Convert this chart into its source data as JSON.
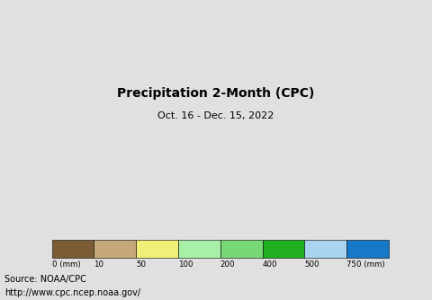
{
  "title": "Precipitation 2-Month (CPC)",
  "subtitle": "Oct. 16 - Dec. 15, 2022",
  "source_line1": "Source: NOAA/CPC",
  "source_line2": "http://www.cpc.ncep.noaa.gov/",
  "colorbar_colors": [
    "#7B5C35",
    "#C4A878",
    "#F0F078",
    "#A8F0A8",
    "#78D878",
    "#20B020",
    "#A8D4F0",
    "#1878C8"
  ],
  "colorbar_labels": [
    "0 (mm)",
    "10",
    "50",
    "100",
    "200",
    "400",
    "500",
    "750 (mm)"
  ],
  "ocean_color": "#AAFFFF",
  "background_color": "#E0E0E0",
  "title_fontsize": 13,
  "subtitle_fontsize": 8,
  "source_fontsize": 7,
  "country_colors": {
    "Canada": "#A8F0A8",
    "United States of America": "#78D878",
    "Mexico": "#A8F0A8",
    "Guatemala": "#A8F0A8",
    "Belize": "#A8F0A8",
    "Honduras": "#A8F0A8",
    "El Salvador": "#A8F0A8",
    "Nicaragua": "#A8F0A8",
    "Costa Rica": "#20B020",
    "Panama": "#20B020",
    "Cuba": "#A8F0A8",
    "Jamaica": "#A8F0A8",
    "Haiti": "#A8F0A8",
    "Dominican Rep.": "#A8F0A8",
    "Puerto Rico": "#A8F0A8",
    "Trinidad and Tobago": "#A8F0A8",
    "Venezuela": "#A8F0A8",
    "Colombia": "#78D878",
    "Ecuador": "#78D878",
    "Peru": "#C4A878",
    "Brazil": "#78D878",
    "Bolivia": "#A8F0A8",
    "Paraguay": "#A8F0A8",
    "Argentina": "#C4A878",
    "Chile": "#C4A878",
    "Uruguay": "#A8F0A8",
    "Guyana": "#78D878",
    "Suriname": "#78D878",
    "French Guiana": "#78D878",
    "Iceland": "#F0F078",
    "Norway": "#F0F078",
    "Sweden": "#F0F078",
    "Finland": "#F0F078",
    "Denmark": "#F0F078",
    "United Kingdom": "#A8F0A8",
    "Ireland": "#A8F0A8",
    "Portugal": "#F0F078",
    "Spain": "#F0F078",
    "France": "#F0F078",
    "Belgium": "#F0F078",
    "Netherlands": "#F0F078",
    "Germany": "#F0F078",
    "Switzerland": "#A8F0A8",
    "Austria": "#F0F078",
    "Italy": "#F0F078",
    "Greece": "#F0F078",
    "Poland": "#F0F078",
    "Czech Rep.": "#F0F078",
    "Slovakia": "#F0F078",
    "Hungary": "#F0F078",
    "Romania": "#F0F078",
    "Bulgaria": "#F0F078",
    "Serbia": "#F0F078",
    "Croatia": "#F0F078",
    "Bosnia and Herz.": "#F0F078",
    "Albania": "#F0F078",
    "Slovenia": "#F0F078",
    "North Macedonia": "#F0F078",
    "Montenegro": "#F0F078",
    "Kosovo": "#F0F078",
    "Latvia": "#F0F078",
    "Lithuania": "#F0F078",
    "Estonia": "#F0F078",
    "Belarus": "#F0F078",
    "Ukraine": "#F0F078",
    "Moldova": "#F0F078",
    "Russia": "#A8F0A8",
    "Turkey": "#C4A878",
    "Syria": "#7B5C35",
    "Lebanon": "#7B5C35",
    "Israel": "#7B5C35",
    "Jordan": "#7B5C35",
    "Iraq": "#7B5C35",
    "Iran": "#C4A878",
    "Saudi Arabia": "#7B5C35",
    "Yemen": "#7B5C35",
    "Oman": "#7B5C35",
    "United Arab Emirates": "#7B5C35",
    "Qatar": "#7B5C35",
    "Bahrain": "#7B5C35",
    "Kuwait": "#7B5C35",
    "Afghanistan": "#7B5C35",
    "Pakistan": "#C4A878",
    "India": "#C4A878",
    "Bangladesh": "#78D878",
    "Nepal": "#C4A878",
    "Bhutan": "#78D878",
    "Sri Lanka": "#20B020",
    "Myanmar": "#A8F0A8",
    "Thailand": "#A8F0A8",
    "Cambodia": "#A8F0A8",
    "Laos": "#A8F0A8",
    "Vietnam": "#78D878",
    "Malaysia": "#20B020",
    "Indonesia": "#78D878",
    "Philippines": "#78D878",
    "China": "#C4A878",
    "Mongolia": "#7B5C35",
    "North Korea": "#A8F0A8",
    "South Korea": "#A8F0A8",
    "Japan": "#78D878",
    "Kazakhstan": "#C4A878",
    "Uzbekistan": "#7B5C35",
    "Turkmenistan": "#7B5C35",
    "Tajikistan": "#C4A878",
    "Kyrgyzstan": "#C4A878",
    "Azerbaijan": "#C4A878",
    "Armenia": "#C4A878",
    "Georgia": "#A8F0A8",
    "Morocco": "#C4A878",
    "Algeria": "#7B5C35",
    "Tunisia": "#C4A878",
    "Libya": "#7B5C35",
    "Egypt": "#7B5C35",
    "Sudan": "#7B5C35",
    "S. Sudan": "#A8F0A8",
    "Ethiopia": "#7B5C35",
    "Eritrea": "#7B5C35",
    "Djibouti": "#7B5C35",
    "Somalia": "#7B5C35",
    "Kenya": "#A8F0A8",
    "Uganda": "#78D878",
    "Tanzania": "#A8F0A8",
    "Rwanda": "#78D878",
    "Burundi": "#78D878",
    "Democratic Republic of the Congo": "#7B5C35",
    "Republic of Congo": "#7B5C35",
    "Central African Rep.": "#7B5C35",
    "Cameroon": "#7B5C35",
    "Nigeria": "#7B5C35",
    "Ghana": "#C4A878",
    "Ivory Coast": "#A8F0A8",
    "Liberia": "#78D878",
    "Sierra Leone": "#78D878",
    "Guinea": "#78D878",
    "Guinea-Bissau": "#78D878",
    "Senegal": "#C4A878",
    "Gambia": "#C4A878",
    "Mali": "#7B5C35",
    "Burkina Faso": "#7B5C35",
    "Niger": "#7B5C35",
    "Chad": "#7B5C35",
    "Mauritania": "#7B5C35",
    "Western Sahara": "#7B5C35",
    "Gabon": "#7B5C35",
    "Eq. Guinea": "#7B5C35",
    "São Tomé and Príncipe": "#7B5C35",
    "Angola": "#A8F0A8",
    "Zambia": "#A8F0A8",
    "Zimbabwe": "#A8F0A8",
    "Malawi": "#78D878",
    "Mozambique": "#A8F0A8",
    "Madagascar": "#A8F0A8",
    "Namibia": "#C4A878",
    "Botswana": "#C4A878",
    "South Africa": "#C4A878",
    "Lesotho": "#C4A878",
    "Swaziland": "#A8F0A8",
    "eSwatini": "#A8F0A8",
    "Togo": "#C4A878",
    "Benin": "#C4A878",
    "Australia": "#C4A878",
    "New Zealand": "#78D878",
    "Papua New Guinea": "#20B020",
    "Fiji": "#20B020",
    "Solomon Is.": "#20B020",
    "Vanuatu": "#20B020",
    "Timor-Leste": "#A8F0A8"
  }
}
